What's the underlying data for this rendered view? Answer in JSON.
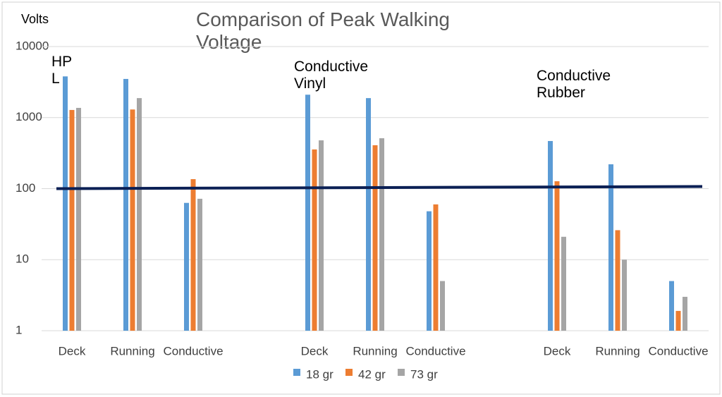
{
  "chart_data": {
    "type": "bar",
    "title": "Comparison of Peak Walking Voltage",
    "y_label": "Volts",
    "categories": [
      "Deck",
      "Running",
      "Conductive",
      null,
      "Deck",
      "Running",
      "Conductive",
      null,
      "Deck",
      "Running",
      "Conductive"
    ],
    "series": [
      {
        "name": "18 gr",
        "color": "#5b9bd5",
        "values": [
          3800,
          3500,
          63,
          null,
          2100,
          1880,
          48,
          null,
          468,
          220,
          5
        ]
      },
      {
        "name": "42 gr",
        "color": "#ed7d31",
        "values": [
          1280,
          1300,
          136,
          null,
          356,
          408,
          60,
          null,
          127,
          26,
          1.9
        ]
      },
      {
        "name": "73 gr",
        "color": "#a5a5a5",
        "values": [
          1370,
          1880,
          72,
          null,
          478,
          512,
          5,
          null,
          21,
          10,
          3
        ]
      }
    ],
    "annotations": [
      {
        "text": "HP L",
        "category": 0
      },
      {
        "text": "Conductive Vinyl",
        "category": 4
      },
      {
        "text": "Conductive Rubber",
        "category": 8
      }
    ],
    "reference_line": {
      "value": 100,
      "color": "#0b2055"
    },
    "log_scale": true,
    "ylim": [
      1,
      10000
    ],
    "yticks": [
      1,
      10,
      100,
      1000,
      10000
    ],
    "grid": true,
    "legend": "bottom"
  }
}
